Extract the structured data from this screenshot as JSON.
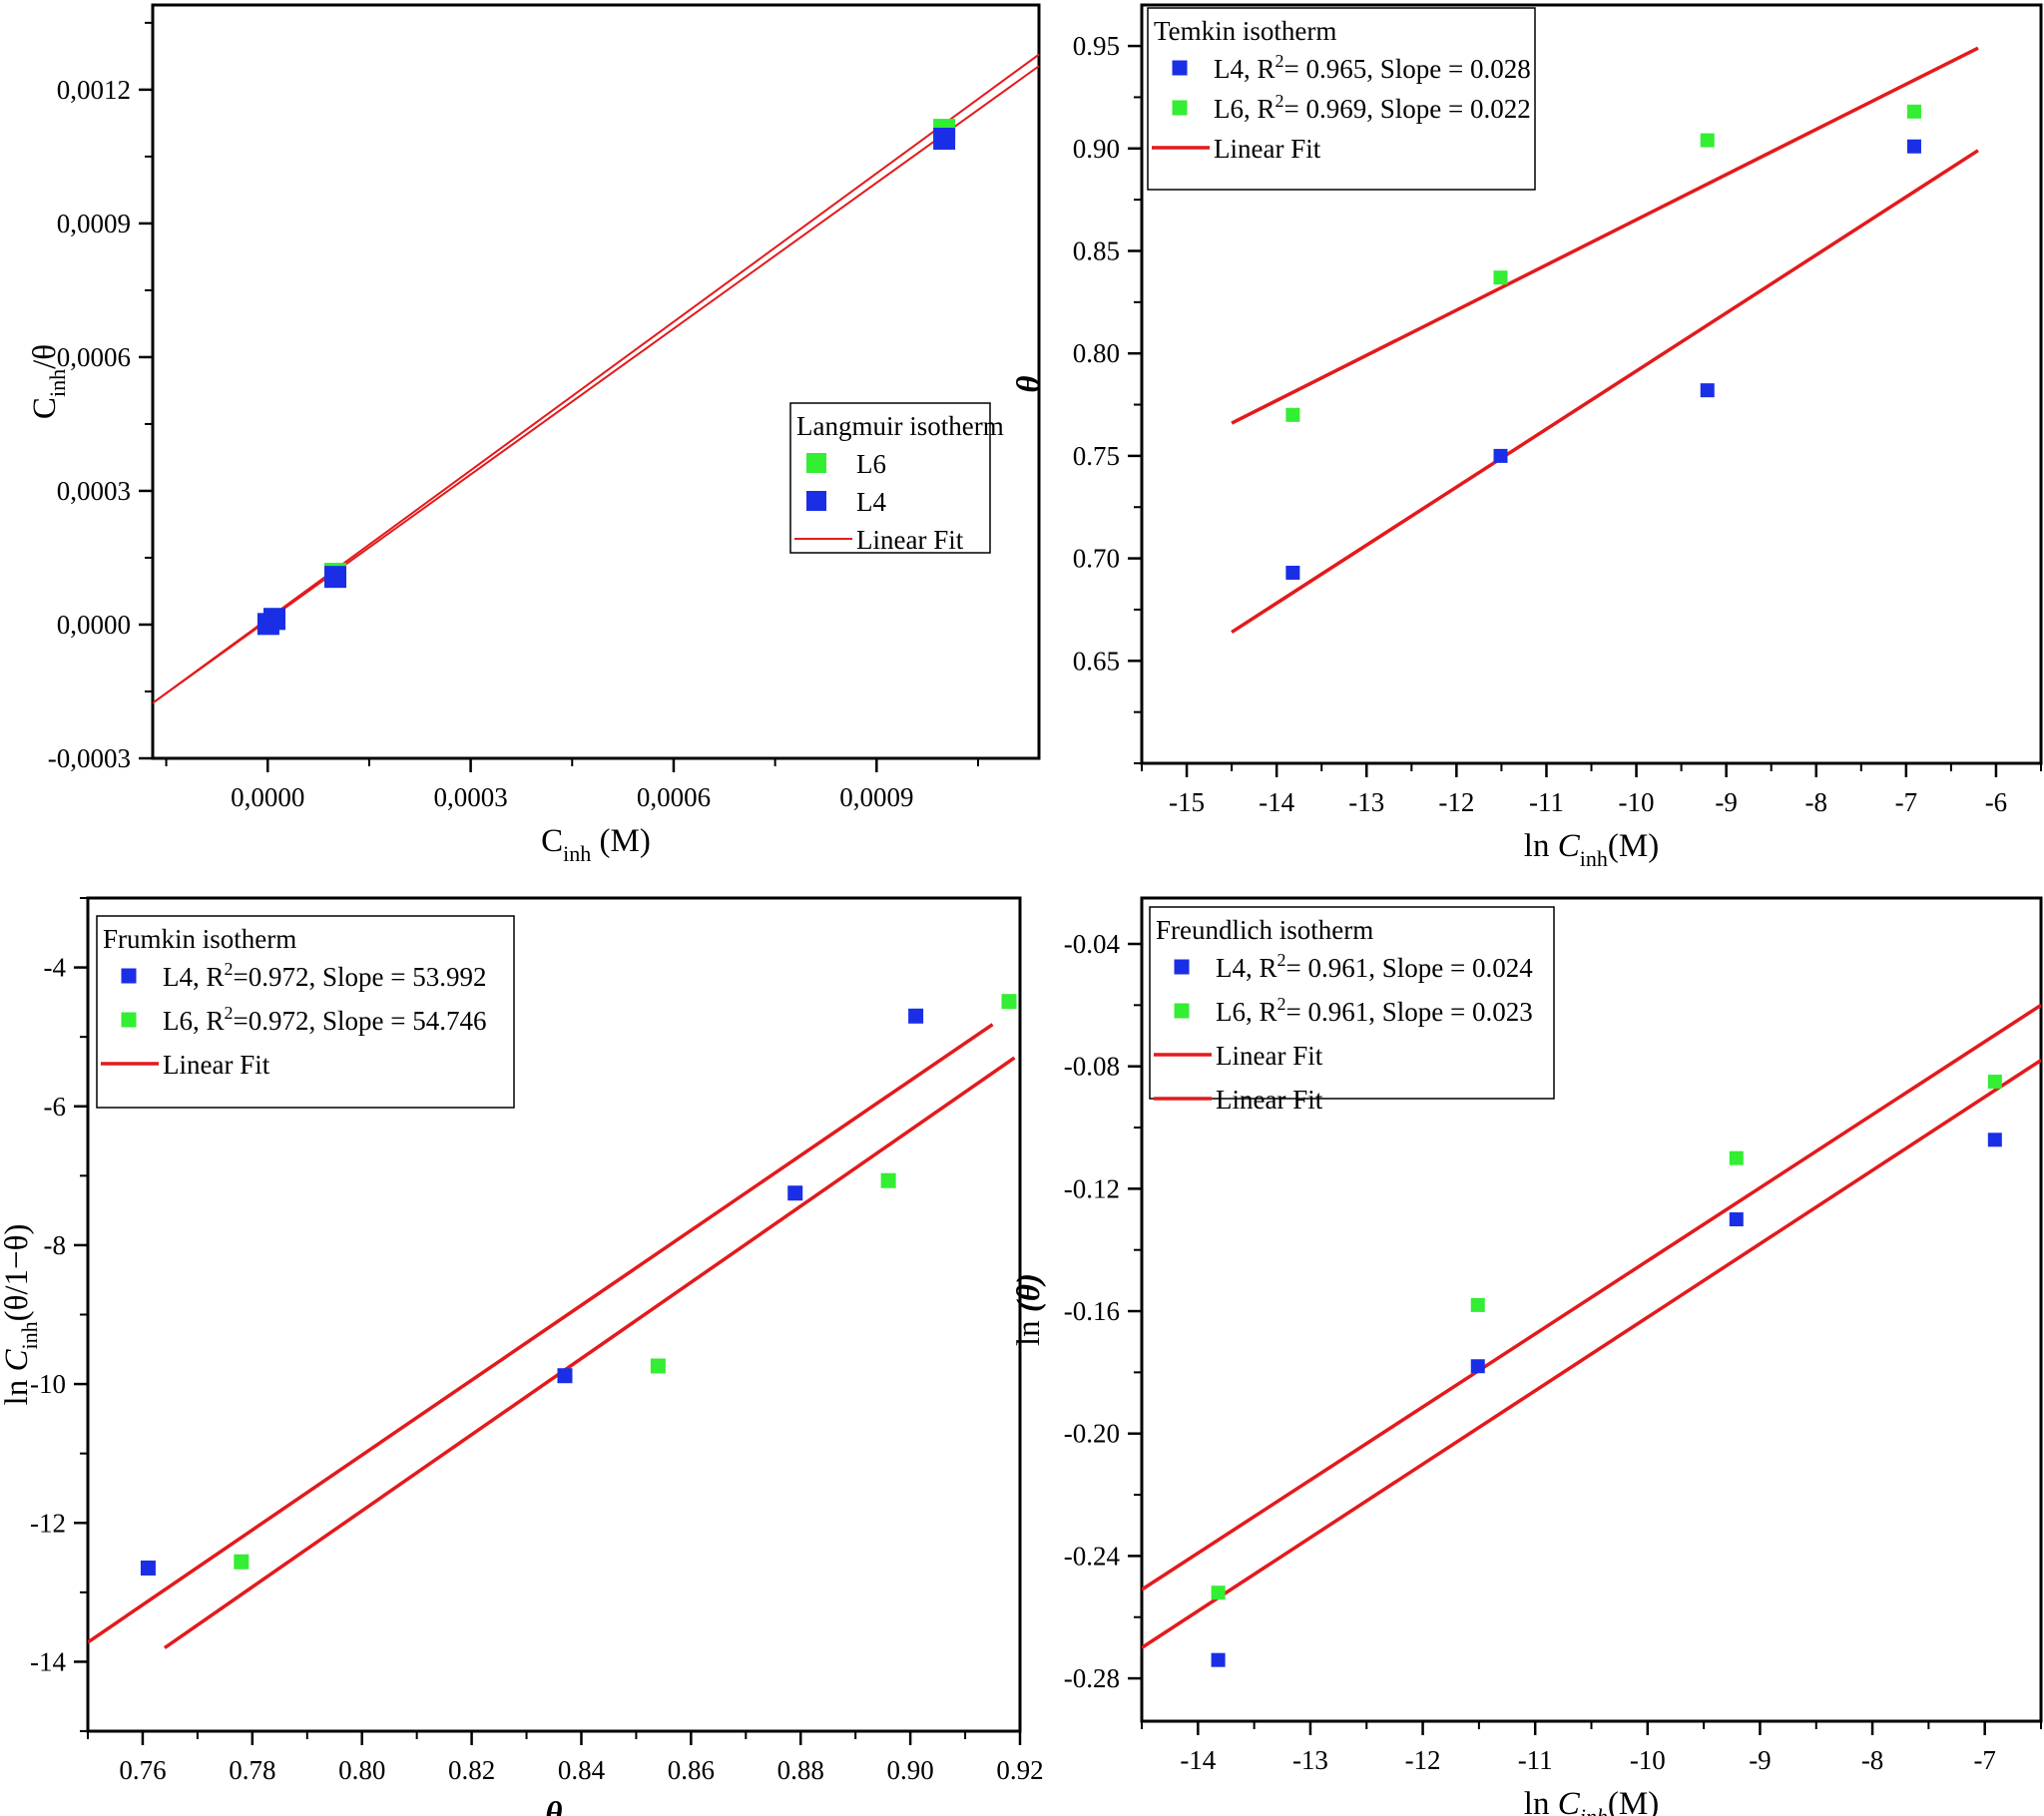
{
  "figure": {
    "description_panels": 4
  },
  "chart_data": [
    {
      "id": "langmuir",
      "type": "scatter",
      "legend_title": "Langmuir isotherm",
      "legend_position": "center-right",
      "xlabel_main": "C",
      "xlabel_sub": "inh",
      "xlabel_suffix": " (M)",
      "ylabel_main": "C",
      "ylabel_sub": "inh",
      "ylabel_suffix": "/θ",
      "xlim": [
        -0.00017,
        0.00114
      ],
      "ylim": [
        -0.0003,
        0.00139
      ],
      "xticks": [
        0.0,
        0.0003,
        0.0006,
        0.0009
      ],
      "xtick_labels": [
        "0,0000",
        "0,0003",
        "0,0006",
        "0,0009"
      ],
      "yticks": [
        -0.0003,
        0.0,
        0.0003,
        0.0006,
        0.0009,
        0.0012
      ],
      "ytick_labels": [
        "-0,0003",
        "0,0000",
        "0,0003",
        "0,0006",
        "0,0009",
        "0,0012"
      ],
      "series": [
        {
          "name": "L6",
          "color": "#33ee33",
          "marker_size": 22,
          "x": [
            1e-05,
            0.0001,
            0.001
          ],
          "y": [
            1.25e-05,
            0.000114,
            0.00111
          ]
        },
        {
          "name": "L4",
          "color": "#1a2ee6",
          "marker_size": 22,
          "x": [
            1e-06,
            1e-05,
            0.0001,
            0.001
          ],
          "y": [
            1.4e-06,
            1.28e-05,
            0.000107,
            0.00109
          ]
        },
        {
          "name": "Linear Fit",
          "type": "line",
          "color": "#e31a1c",
          "x": [
            -0.00017,
            0.00114
          ],
          "y": [
            -0.000176,
            0.001279
          ]
        },
        {
          "name": "Linear Fit",
          "type": "line",
          "color": "#e31a1c",
          "x": [
            -0.00017,
            0.00114
          ],
          "y": [
            -0.000176,
            0.001253
          ],
          "in_legend": false
        }
      ]
    },
    {
      "id": "temkin",
      "type": "scatter",
      "legend_title": "Temkin isotherm",
      "legend_position": "top-left",
      "xlabel_main": "ln ",
      "xlabel_italic": "C",
      "xlabel_sub": "inh",
      "xlabel_suffix": "(M)",
      "ylabel_symbol": "θ",
      "xlim": [
        -15.5,
        -5.5
      ],
      "ylim": [
        0.6,
        0.97
      ],
      "xticks": [
        -15,
        -14,
        -13,
        -12,
        -11,
        -10,
        -9,
        -8,
        -7,
        -6
      ],
      "xtick_labels": [
        "-15",
        "-14",
        "-13",
        "-12",
        "-11",
        "-10",
        "-9",
        "-8",
        "-7",
        "-6"
      ],
      "yticks": [
        0.65,
        0.7,
        0.75,
        0.8,
        0.85,
        0.9,
        0.95
      ],
      "ytick_labels": [
        "0.65",
        "0.70",
        "0.75",
        "0.80",
        "0.85",
        "0.90",
        "0.95"
      ],
      "series": [
        {
          "name": "L4",
          "r2": "0.965",
          "slope": "0.028",
          "color": "#1a2ee6",
          "marker_size": 14,
          "x": [
            -13.82,
            -11.51,
            -9.21,
            -6.91
          ],
          "y": [
            0.693,
            0.75,
            0.782,
            0.901
          ]
        },
        {
          "name": "L6",
          "r2": "0.969",
          "slope": "0.022",
          "color": "#33ee33",
          "marker_size": 14,
          "x": [
            -13.82,
            -11.51,
            -9.21,
            -6.91
          ],
          "y": [
            0.77,
            0.837,
            0.904,
            0.918
          ]
        },
        {
          "name": "Linear Fit",
          "type": "line",
          "color": "#e31a1c",
          "x": [
            -14.5,
            -6.2
          ],
          "y": [
            0.766,
            0.949
          ]
        },
        {
          "name": "Linear Fit",
          "type": "line",
          "color": "#e31a1c",
          "x": [
            -14.5,
            -6.2
          ],
          "y": [
            0.664,
            0.899
          ],
          "in_legend": false
        }
      ]
    },
    {
      "id": "frumkin",
      "type": "scatter",
      "legend_title": "Frumkin isotherm",
      "legend_position": "top-left",
      "xlabel_symbol": "θ",
      "ylabel_main": "ln ",
      "ylabel_italic": "C",
      "ylabel_sub": "inh",
      "ylabel_suffix": "(θ/1−θ)",
      "xlim": [
        0.75,
        0.92
      ],
      "ylim": [
        -15.0,
        -3.0
      ],
      "xticks": [
        0.76,
        0.78,
        0.8,
        0.82,
        0.84,
        0.86,
        0.88,
        0.9,
        0.92
      ],
      "xtick_labels": [
        "0.76",
        "0.78",
        "0.80",
        "0.82",
        "0.84",
        "0.86",
        "0.88",
        "0.90",
        "0.92"
      ],
      "yticks": [
        -14,
        -12,
        -10,
        -8,
        -6,
        -4
      ],
      "ytick_labels": [
        "-14",
        "-12",
        "-10",
        "-8",
        "-6",
        "-4"
      ],
      "series": [
        {
          "name": "L4",
          "r2": "0.972",
          "slope": "53.992",
          "color": "#1a2ee6",
          "marker_size": 15,
          "x": [
            0.761,
            0.837,
            0.879,
            0.901
          ],
          "y": [
            -12.65,
            -9.88,
            -7.25,
            -4.7
          ]
        },
        {
          "name": "L6",
          "r2": "0.972",
          "slope": "54.746",
          "color": "#33ee33",
          "marker_size": 15,
          "x": [
            0.778,
            0.854,
            0.896,
            0.918
          ],
          "y": [
            -12.56,
            -9.74,
            -7.07,
            -4.49
          ]
        },
        {
          "name": "Linear Fit",
          "type": "line",
          "color": "#e31a1c",
          "x": [
            0.75,
            0.915
          ],
          "y": [
            -13.72,
            -4.82
          ]
        },
        {
          "name": "Linear Fit",
          "type": "line",
          "color": "#e31a1c",
          "x": [
            0.764,
            0.919
          ],
          "y": [
            -13.8,
            -5.3
          ],
          "in_legend": false
        }
      ]
    },
    {
      "id": "freundlich",
      "type": "scatter",
      "legend_title": "Freundlich isotherm",
      "legend_position": "top-left",
      "xlabel_main": "ln ",
      "xlabel_italic": "C",
      "xlabel_sub": "inh",
      "xlabel_suffix": "(M)",
      "ylabel_main": "ln ",
      "ylabel_symbol": "(θ)",
      "xlim": [
        -14.5,
        -6.5
      ],
      "ylim": [
        -0.294,
        -0.025
      ],
      "xticks": [
        -14,
        -13,
        -12,
        -11,
        -10,
        -9,
        -8,
        -7
      ],
      "xtick_labels": [
        "-14",
        "-13",
        "-12",
        "-11",
        "-10",
        "-9",
        "-8",
        "-7"
      ],
      "yticks": [
        -0.28,
        -0.24,
        -0.2,
        -0.16,
        -0.12,
        -0.08,
        -0.04
      ],
      "ytick_labels": [
        "-0.28",
        "-0.24",
        "-0.20",
        "-0.16",
        "-0.12",
        "-0.08",
        "-0.04"
      ],
      "series": [
        {
          "name": "L4",
          "r2": "0.961",
          "slope": "0.024",
          "color": "#1a2ee6",
          "marker_size": 14,
          "x": [
            -13.82,
            -11.51,
            -9.21,
            -6.91
          ],
          "y": [
            -0.274,
            -0.178,
            -0.13,
            -0.104
          ]
        },
        {
          "name": "L6",
          "r2": "0.961",
          "slope": "0.023",
          "color": "#33ee33",
          "marker_size": 14,
          "x": [
            -13.82,
            -11.51,
            -9.21,
            -6.91
          ],
          "y": [
            -0.252,
            -0.158,
            -0.11,
            -0.085
          ]
        },
        {
          "name": "Linear Fit",
          "type": "line",
          "color": "#e31a1c",
          "x": [
            -14.5,
            -6.5
          ],
          "y": [
            -0.251,
            -0.06
          ]
        },
        {
          "name": "Linear Fit",
          "type": "line",
          "color": "#e31a1c",
          "x": [
            -14.5,
            -6.5
          ],
          "y": [
            -0.27,
            -0.078
          ]
        },
        {
          "name": "Linear Fit",
          "type": "line",
          "color": "#e31a1c",
          "x": [],
          "y": [],
          "in_legend": false
        }
      ]
    }
  ]
}
